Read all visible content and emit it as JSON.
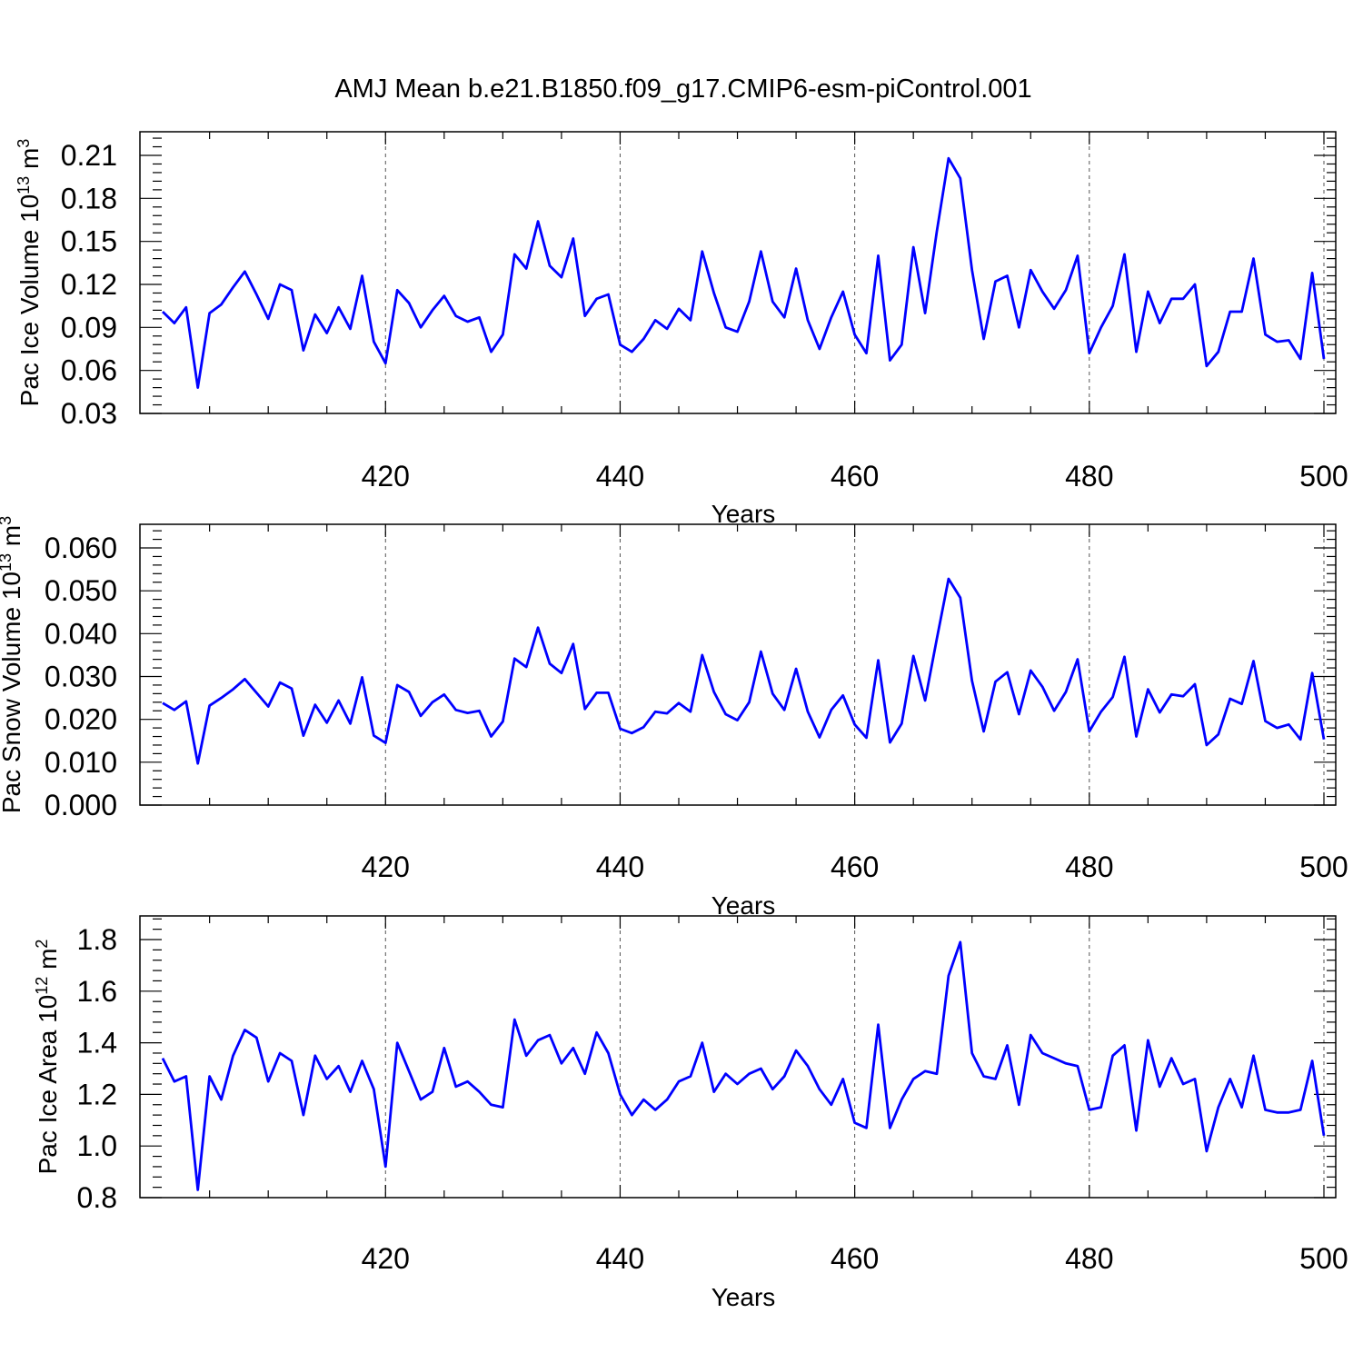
{
  "colors": {
    "series": "#0000ff",
    "grid": "#555555",
    "axis": "#000000"
  },
  "figure_title": "AMJ Mean b.e21.B1850.f09_g17.CMIP6-esm-piControl.001",
  "chart_data": [
    {
      "type": "line",
      "ylabel": "Pac Ice Volume 10",
      "ylabel_exp": "13",
      "ylabel_unit": " m",
      "ylabel_unit_exp": "3",
      "xlabel": "Years",
      "xlim": [
        401,
        500
      ],
      "ylim": [
        0.03,
        0.21
      ],
      "yticks": [
        0.03,
        0.06,
        0.09,
        0.12,
        0.15,
        0.18,
        0.21
      ],
      "ytick_labels": [
        "0.03",
        "0.06",
        "0.09",
        "0.12",
        "0.15",
        "0.18",
        "0.21"
      ],
      "xticks": [
        420,
        440,
        460,
        480,
        500
      ],
      "xtick_labels": [
        "420",
        "440",
        "460",
        "480",
        "500"
      ],
      "grid": "vertical dashed at major x ticks",
      "series": [
        {
          "x": [
            401,
            402,
            403,
            404,
            405,
            406,
            407,
            408,
            409,
            410,
            411,
            412,
            413,
            414,
            415,
            416,
            417,
            418,
            419,
            420,
            421,
            422,
            423,
            424,
            425,
            426,
            427,
            428,
            429,
            430,
            431,
            432,
            433,
            434,
            435,
            436,
            437,
            438,
            439,
            440,
            441,
            442,
            443,
            444,
            445,
            446,
            447,
            448,
            449,
            450,
            451,
            452,
            453,
            454,
            455,
            456,
            457,
            458,
            459,
            460,
            461,
            462,
            463,
            464,
            465,
            466,
            467,
            468,
            469,
            470,
            471,
            472,
            473,
            474,
            475,
            476,
            477,
            478,
            479,
            480,
            481,
            482,
            483,
            484,
            485,
            486,
            487,
            488,
            489,
            490,
            491,
            492,
            493,
            494,
            495,
            496,
            497,
            498,
            499,
            500
          ],
          "values": [
            0.101,
            0.093,
            0.104,
            0.048,
            0.1,
            0.106,
            0.118,
            0.129,
            0.113,
            0.096,
            0.12,
            0.116,
            0.074,
            0.099,
            0.086,
            0.104,
            0.089,
            0.126,
            0.08,
            0.065,
            0.116,
            0.107,
            0.09,
            0.102,
            0.112,
            0.098,
            0.094,
            0.097,
            0.073,
            0.085,
            0.141,
            0.131,
            0.164,
            0.133,
            0.125,
            0.152,
            0.098,
            0.11,
            0.113,
            0.078,
            0.073,
            0.082,
            0.095,
            0.089,
            0.103,
            0.095,
            0.143,
            0.114,
            0.09,
            0.087,
            0.108,
            0.143,
            0.108,
            0.097,
            0.131,
            0.095,
            0.075,
            0.097,
            0.115,
            0.085,
            0.072,
            0.14,
            0.067,
            0.078,
            0.146,
            0.1,
            0.157,
            0.208,
            0.194,
            0.13,
            0.082,
            0.122,
            0.126,
            0.09,
            0.13,
            0.115,
            0.103,
            0.116,
            0.14,
            0.072,
            0.09,
            0.105,
            0.141,
            0.073,
            0.115,
            0.093,
            0.11,
            0.11,
            0.12,
            0.063,
            0.073,
            0.101,
            0.101,
            0.138,
            0.085,
            0.08,
            0.081,
            0.068,
            0.128,
            0.068
          ]
        }
      ]
    },
    {
      "type": "line",
      "ylabel": "Pac Snow Volume 10",
      "ylabel_exp": "13",
      "ylabel_unit": " m",
      "ylabel_unit_exp": "3",
      "xlabel": "Years",
      "xlim": [
        401,
        500
      ],
      "ylim": [
        0.0,
        0.06
      ],
      "yticks": [
        0.0,
        0.01,
        0.02,
        0.03,
        0.04,
        0.05,
        0.06
      ],
      "ytick_labels": [
        "0.000",
        "0.010",
        "0.020",
        "0.030",
        "0.040",
        "0.050",
        "0.060"
      ],
      "xticks": [
        420,
        440,
        460,
        480,
        500
      ],
      "xtick_labels": [
        "420",
        "440",
        "460",
        "480",
        "500"
      ],
      "grid": "vertical dashed at major x ticks",
      "series": [
        {
          "x": [
            401,
            402,
            403,
            404,
            405,
            406,
            407,
            408,
            409,
            410,
            411,
            412,
            413,
            414,
            415,
            416,
            417,
            418,
            419,
            420,
            421,
            422,
            423,
            424,
            425,
            426,
            427,
            428,
            429,
            430,
            431,
            432,
            433,
            434,
            435,
            436,
            437,
            438,
            439,
            440,
            441,
            442,
            443,
            444,
            445,
            446,
            447,
            448,
            449,
            450,
            451,
            452,
            453,
            454,
            455,
            456,
            457,
            458,
            459,
            460,
            461,
            462,
            463,
            464,
            465,
            466,
            467,
            468,
            469,
            470,
            471,
            472,
            473,
            474,
            475,
            476,
            477,
            478,
            479,
            480,
            481,
            482,
            483,
            484,
            485,
            486,
            487,
            488,
            489,
            490,
            491,
            492,
            493,
            494,
            495,
            496,
            497,
            498,
            499,
            500
          ],
          "values": [
            0.0238,
            0.0222,
            0.0242,
            0.0097,
            0.0232,
            0.025,
            0.027,
            0.0294,
            0.0262,
            0.023,
            0.0286,
            0.0272,
            0.0162,
            0.0234,
            0.0192,
            0.0244,
            0.019,
            0.0298,
            0.0162,
            0.0145,
            0.028,
            0.0264,
            0.0208,
            0.024,
            0.0258,
            0.0222,
            0.0215,
            0.022,
            0.016,
            0.0195,
            0.0342,
            0.0322,
            0.0414,
            0.033,
            0.0308,
            0.0376,
            0.0224,
            0.0262,
            0.0262,
            0.0178,
            0.0168,
            0.0182,
            0.0218,
            0.0214,
            0.0238,
            0.0218,
            0.035,
            0.0264,
            0.0212,
            0.0198,
            0.024,
            0.0358,
            0.026,
            0.0222,
            0.0318,
            0.0218,
            0.0158,
            0.0222,
            0.0256,
            0.0188,
            0.0157,
            0.0338,
            0.0146,
            0.019,
            0.0348,
            0.0244,
            0.0388,
            0.0528,
            0.0484,
            0.029,
            0.0172,
            0.0288,
            0.031,
            0.0212,
            0.0314,
            0.0276,
            0.022,
            0.0264,
            0.034,
            0.0172,
            0.0218,
            0.0252,
            0.0346,
            0.016,
            0.027,
            0.0216,
            0.0258,
            0.0254,
            0.0282,
            0.014,
            0.0165,
            0.0248,
            0.0236,
            0.0336,
            0.0196,
            0.018,
            0.0188,
            0.0153,
            0.0308,
            0.0153
          ]
        }
      ]
    },
    {
      "type": "line",
      "ylabel": "Pac Ice Area 10",
      "ylabel_exp": "12",
      "ylabel_unit": " m",
      "ylabel_unit_exp": "2",
      "xlabel": "Years",
      "xlim": [
        401,
        500
      ],
      "ylim": [
        0.8,
        1.8
      ],
      "yticks": [
        0.8,
        1.0,
        1.2,
        1.4,
        1.6,
        1.8
      ],
      "ytick_labels": [
        "0.8",
        "1.0",
        "1.2",
        "1.4",
        "1.6",
        "1.8"
      ],
      "xticks": [
        420,
        440,
        460,
        480,
        500
      ],
      "xtick_labels": [
        "420",
        "440",
        "460",
        "480",
        "500"
      ],
      "grid": "vertical dashed at major x ticks",
      "series": [
        {
          "x": [
            401,
            402,
            403,
            404,
            405,
            406,
            407,
            408,
            409,
            410,
            411,
            412,
            413,
            414,
            415,
            416,
            417,
            418,
            419,
            420,
            421,
            422,
            423,
            424,
            425,
            426,
            427,
            428,
            429,
            430,
            431,
            432,
            433,
            434,
            435,
            436,
            437,
            438,
            439,
            440,
            441,
            442,
            443,
            444,
            445,
            446,
            447,
            448,
            449,
            450,
            451,
            452,
            453,
            454,
            455,
            456,
            457,
            458,
            459,
            460,
            461,
            462,
            463,
            464,
            465,
            466,
            467,
            468,
            469,
            470,
            471,
            472,
            473,
            474,
            475,
            476,
            477,
            478,
            479,
            480,
            481,
            482,
            483,
            484,
            485,
            486,
            487,
            488,
            489,
            490,
            491,
            492,
            493,
            494,
            495,
            496,
            497,
            498,
            499,
            500
          ],
          "values": [
            1.34,
            1.25,
            1.27,
            0.83,
            1.27,
            1.18,
            1.35,
            1.45,
            1.42,
            1.25,
            1.36,
            1.33,
            1.12,
            1.35,
            1.26,
            1.31,
            1.21,
            1.33,
            1.22,
            0.92,
            1.4,
            1.29,
            1.18,
            1.21,
            1.38,
            1.23,
            1.25,
            1.21,
            1.16,
            1.15,
            1.49,
            1.35,
            1.41,
            1.43,
            1.32,
            1.38,
            1.28,
            1.44,
            1.36,
            1.2,
            1.12,
            1.18,
            1.14,
            1.18,
            1.25,
            1.27,
            1.4,
            1.21,
            1.28,
            1.24,
            1.28,
            1.3,
            1.22,
            1.27,
            1.37,
            1.31,
            1.22,
            1.16,
            1.26,
            1.09,
            1.07,
            1.47,
            1.07,
            1.18,
            1.26,
            1.29,
            1.28,
            1.66,
            1.79,
            1.36,
            1.27,
            1.26,
            1.39,
            1.16,
            1.43,
            1.36,
            1.34,
            1.32,
            1.31,
            1.14,
            1.15,
            1.35,
            1.39,
            1.06,
            1.41,
            1.23,
            1.34,
            1.24,
            1.26,
            0.98,
            1.15,
            1.26,
            1.15,
            1.35,
            1.14,
            1.13,
            1.13,
            1.14,
            1.33,
            1.04
          ]
        }
      ]
    }
  ]
}
